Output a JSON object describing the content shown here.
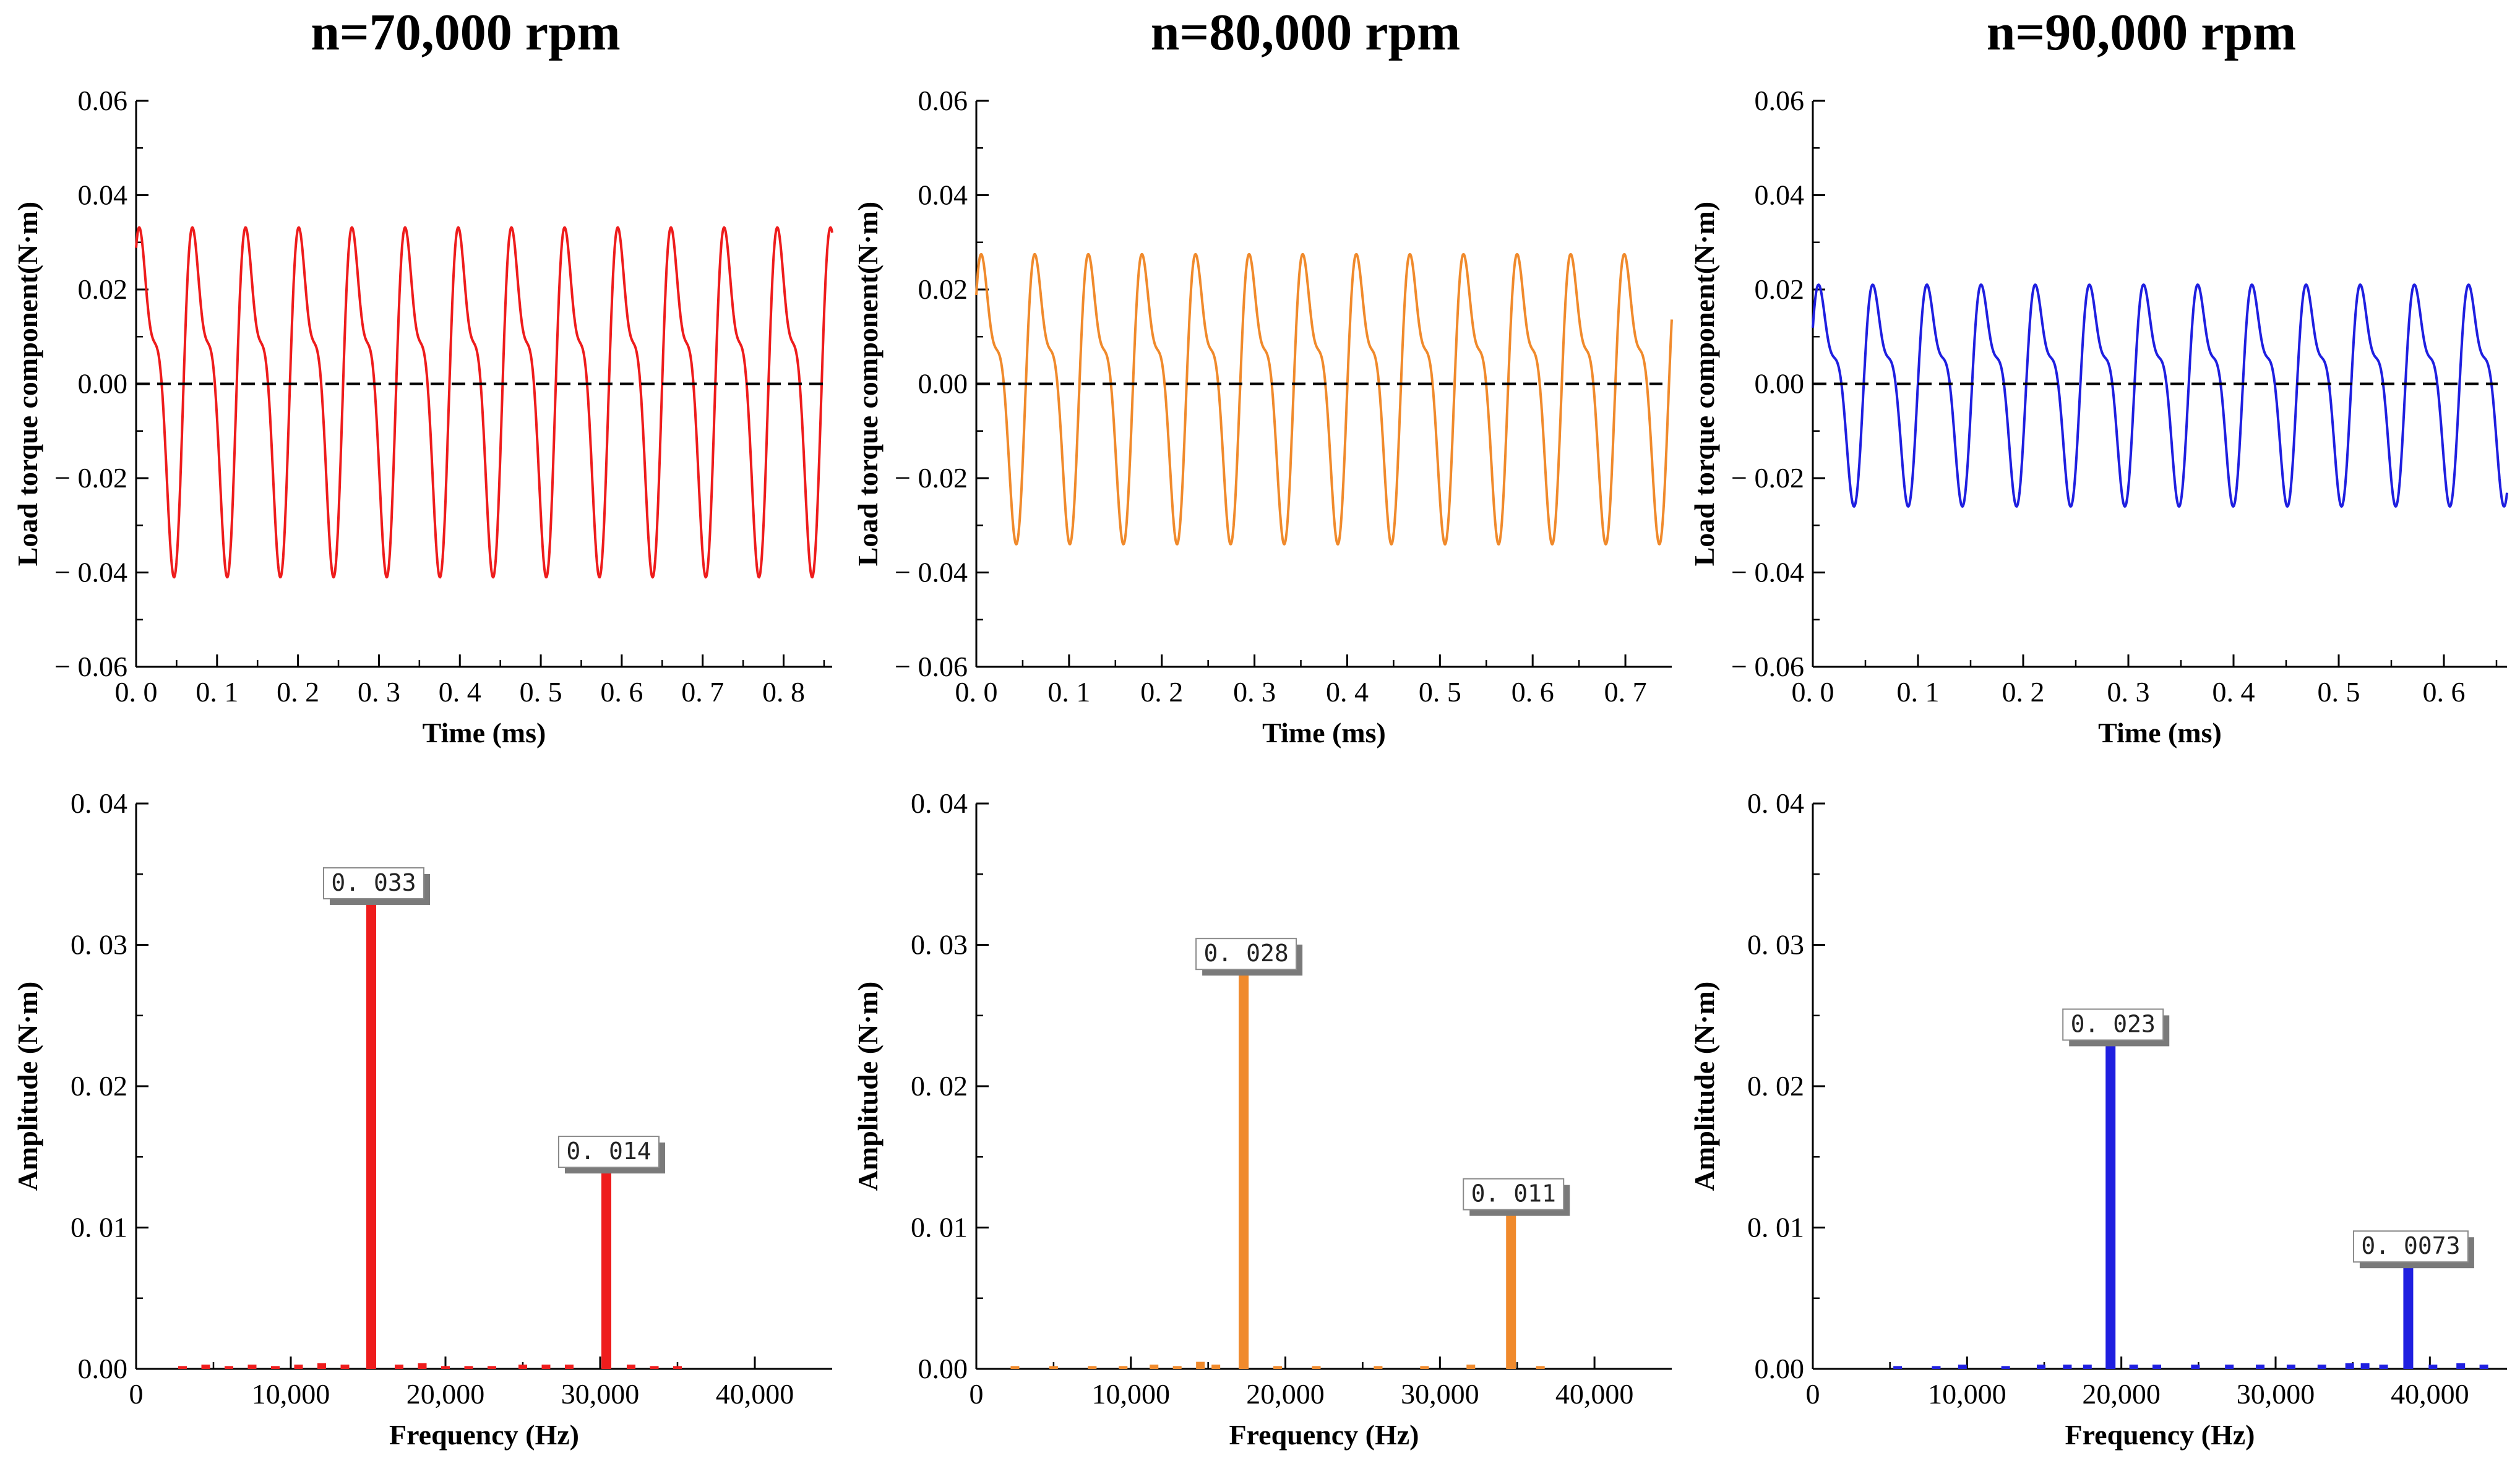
{
  "colors": {
    "red": "#ee1c1c",
    "orange": "#f08a2c",
    "blue": "#1f1fe0"
  },
  "chart_data": [
    {
      "type": "line",
      "panel": "top-left",
      "speed_rpm": 70000,
      "title": "n=70,000 rpm",
      "xlabel": "Time (ms)",
      "ylabel": "Load torque component(N·m)",
      "xlim": [
        0,
        0.86
      ],
      "ylim": [
        -0.06,
        0.06
      ],
      "xticks": [
        0,
        0.1,
        0.2,
        0.3,
        0.4,
        0.5,
        0.6,
        0.7,
        0.8
      ],
      "xtick_labels": [
        "0. 0",
        "0. 1",
        "0. 2",
        "0. 3",
        "0. 4",
        "0. 5",
        "0. 6",
        "0. 7",
        "0. 8"
      ],
      "yticks": [
        -0.06,
        -0.04,
        -0.02,
        0,
        0.02,
        0.04,
        0.06
      ],
      "ytick_labels": [
        "− 0.06",
        "− 0.04",
        "− 0.02",
        "0.00",
        "0.02",
        "0.04",
        "0.06"
      ],
      "period_ms": 0.0657,
      "amplitude": 0.041,
      "phase": 0.55,
      "zero_line": true,
      "color_key": "red"
    },
    {
      "type": "line",
      "panel": "top-middle",
      "speed_rpm": 80000,
      "title": "n=80,000 rpm",
      "xlabel": "Time (ms)",
      "ylabel": "Load torque component(N·m)",
      "xlim": [
        0,
        0.75
      ],
      "ylim": [
        -0.06,
        0.06
      ],
      "xticks": [
        0,
        0.1,
        0.2,
        0.3,
        0.4,
        0.5,
        0.6,
        0.7
      ],
      "xtick_labels": [
        "0. 0",
        "0. 1",
        "0. 2",
        "0. 3",
        "0. 4",
        "0. 5",
        "0. 6",
        "0. 7"
      ],
      "yticks": [
        -0.06,
        -0.04,
        -0.02,
        0,
        0.02,
        0.04,
        0.06
      ],
      "ytick_labels": [
        "− 0.06",
        "− 0.04",
        "− 0.02",
        "0.00",
        "0.02",
        "0.04",
        "0.06"
      ],
      "period_ms": 0.0578,
      "amplitude": 0.034,
      "phase": 0.35,
      "zero_line": true,
      "color_key": "orange"
    },
    {
      "type": "line",
      "panel": "top-right",
      "speed_rpm": 90000,
      "title": "n=90,000 rpm",
      "xlabel": "Time (ms)",
      "ylabel": "Load torque component(N·m)",
      "xlim": [
        0,
        0.66
      ],
      "ylim": [
        -0.06,
        0.06
      ],
      "xticks": [
        0,
        0.1,
        0.2,
        0.3,
        0.4,
        0.5,
        0.6
      ],
      "xtick_labels": [
        "0. 0",
        "0. 1",
        "0. 2",
        "0. 3",
        "0. 4",
        "0. 5",
        "0. 6"
      ],
      "yticks": [
        -0.06,
        -0.04,
        -0.02,
        0,
        0.02,
        0.04,
        0.06
      ],
      "ytick_labels": [
        "− 0.06",
        "− 0.04",
        "− 0.02",
        "0.00",
        "0.02",
        "0.04",
        "0.06"
      ],
      "period_ms": 0.0515,
      "amplitude": 0.026,
      "phase": 0.25,
      "zero_line": true,
      "color_key": "blue"
    },
    {
      "type": "bar",
      "panel": "bottom-left",
      "xlabel": "Frequency (Hz)",
      "ylabel": "Amplitude (N·m)",
      "xlim": [
        0,
        45000
      ],
      "ylim": [
        0,
        0.04
      ],
      "xticks": [
        10000,
        20000,
        30000,
        40000
      ],
      "xtick_labels": [
        "10,000",
        "20,000",
        "30,000",
        "40,000"
      ],
      "xtick_zero_label": "0",
      "yticks": [
        0,
        0.01,
        0.02,
        0.03,
        0.04
      ],
      "ytick_labels": [
        "0.00",
        "0. 01",
        "0. 02",
        "0. 03",
        "0. 04"
      ],
      "peaks": [
        {
          "frequency": 15200,
          "value": 0.033,
          "label": "0. 033"
        },
        {
          "frequency": 30400,
          "value": 0.014,
          "label": "0. 014"
        }
      ],
      "noise": [
        {
          "frequency": 3000,
          "value": 0.0002
        },
        {
          "frequency": 4500,
          "value": 0.0003
        },
        {
          "frequency": 6000,
          "value": 0.0002
        },
        {
          "frequency": 7500,
          "value": 0.0003
        },
        {
          "frequency": 9000,
          "value": 0.0002
        },
        {
          "frequency": 10500,
          "value": 0.0003
        },
        {
          "frequency": 12000,
          "value": 0.0004
        },
        {
          "frequency": 13500,
          "value": 0.0003
        },
        {
          "frequency": 17000,
          "value": 0.0003
        },
        {
          "frequency": 18500,
          "value": 0.0004
        },
        {
          "frequency": 20000,
          "value": 0.0002
        },
        {
          "frequency": 21500,
          "value": 0.0002
        },
        {
          "frequency": 23000,
          "value": 0.0002
        },
        {
          "frequency": 25000,
          "value": 0.0003
        },
        {
          "frequency": 26500,
          "value": 0.0003
        },
        {
          "frequency": 28000,
          "value": 0.0003
        },
        {
          "frequency": 32000,
          "value": 0.0003
        },
        {
          "frequency": 33500,
          "value": 0.0002
        },
        {
          "frequency": 35000,
          "value": 0.0002
        }
      ],
      "color_key": "red"
    },
    {
      "type": "bar",
      "panel": "bottom-middle",
      "xlabel": "Frequency (Hz)",
      "ylabel": "Amplitude (N·m)",
      "xlim": [
        0,
        45000
      ],
      "ylim": [
        0,
        0.04
      ],
      "xticks": [
        10000,
        20000,
        30000,
        40000
      ],
      "xtick_labels": [
        "10,000",
        "20,000",
        "30,000",
        "40,000"
      ],
      "xtick_zero_label": "0",
      "yticks": [
        0,
        0.01,
        0.02,
        0.03,
        0.04
      ],
      "ytick_labels": [
        "0.00",
        "0. 01",
        "0. 02",
        "0. 03",
        "0. 04"
      ],
      "peaks": [
        {
          "frequency": 17300,
          "value": 0.028,
          "label": "0. 028"
        },
        {
          "frequency": 34600,
          "value": 0.011,
          "label": "0. 011"
        }
      ],
      "noise": [
        {
          "frequency": 2500,
          "value": 0.0002
        },
        {
          "frequency": 5000,
          "value": 0.0002
        },
        {
          "frequency": 7500,
          "value": 0.0002
        },
        {
          "frequency": 9500,
          "value": 0.0002
        },
        {
          "frequency": 11500,
          "value": 0.0003
        },
        {
          "frequency": 13000,
          "value": 0.0002
        },
        {
          "frequency": 14500,
          "value": 0.0005
        },
        {
          "frequency": 15500,
          "value": 0.0003
        },
        {
          "frequency": 19500,
          "value": 0.0002
        },
        {
          "frequency": 22000,
          "value": 0.0002
        },
        {
          "frequency": 26000,
          "value": 0.0002
        },
        {
          "frequency": 29000,
          "value": 0.0002
        },
        {
          "frequency": 32000,
          "value": 0.0003
        },
        {
          "frequency": 36500,
          "value": 0.0002
        }
      ],
      "color_key": "orange"
    },
    {
      "type": "bar",
      "panel": "bottom-right",
      "xlabel": "Frequency (Hz)",
      "ylabel": "Amplitude (N·m)",
      "xlim": [
        0,
        45000
      ],
      "ylim": [
        0,
        0.04
      ],
      "xticks": [
        10000,
        20000,
        30000,
        40000
      ],
      "xtick_labels": [
        "10,000",
        "20,000",
        "30,000",
        "40,000"
      ],
      "xtick_zero_label": "0",
      "yticks": [
        0,
        0.01,
        0.02,
        0.03,
        0.04
      ],
      "ytick_labels": [
        "0.00",
        "0. 01",
        "0. 02",
        "0. 03",
        "0. 04"
      ],
      "peaks": [
        {
          "frequency": 19300,
          "value": 0.023,
          "label": "0. 023"
        },
        {
          "frequency": 38600,
          "value": 0.0073,
          "label": "0. 0073"
        }
      ],
      "noise": [
        {
          "frequency": 5500,
          "value": 0.0002
        },
        {
          "frequency": 8000,
          "value": 0.0002
        },
        {
          "frequency": 9700,
          "value": 0.0003
        },
        {
          "frequency": 12500,
          "value": 0.0002
        },
        {
          "frequency": 14800,
          "value": 0.0003
        },
        {
          "frequency": 16500,
          "value": 0.0003
        },
        {
          "frequency": 17800,
          "value": 0.0003
        },
        {
          "frequency": 20800,
          "value": 0.0003
        },
        {
          "frequency": 22300,
          "value": 0.0003
        },
        {
          "frequency": 24800,
          "value": 0.0003
        },
        {
          "frequency": 27000,
          "value": 0.0003
        },
        {
          "frequency": 29000,
          "value": 0.0003
        },
        {
          "frequency": 31000,
          "value": 0.0003
        },
        {
          "frequency": 33000,
          "value": 0.0003
        },
        {
          "frequency": 34800,
          "value": 0.0004
        },
        {
          "frequency": 35800,
          "value": 0.0004
        },
        {
          "frequency": 37000,
          "value": 0.0003
        },
        {
          "frequency": 40200,
          "value": 0.0003
        },
        {
          "frequency": 42000,
          "value": 0.0004
        },
        {
          "frequency": 43500,
          "value": 0.0003
        }
      ],
      "color_key": "blue"
    }
  ]
}
